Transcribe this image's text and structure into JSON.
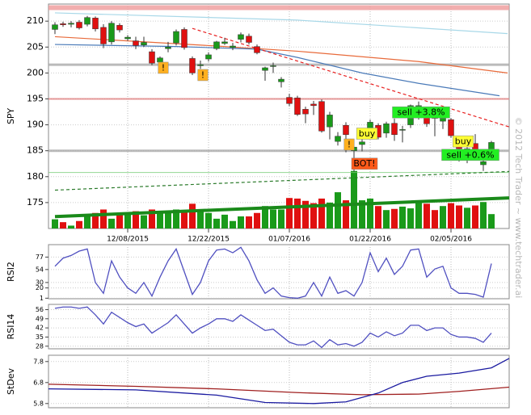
{
  "chart_data": [
    {
      "type": "candlestick",
      "ylabel": "SPY",
      "xlim": [
        -0.8,
        56.2
      ],
      "ylim": [
        170,
        213.3
      ],
      "grid": true,
      "xticks": [
        {
          "value": 9,
          "label": "12/08/2015"
        },
        {
          "value": 19,
          "label": "12/22/2015"
        },
        {
          "value": 29,
          "label": "01/07/2016"
        },
        {
          "value": 39,
          "label": "01/22/2016"
        },
        {
          "value": 49,
          "label": "02/05/2016"
        }
      ],
      "yticks": [
        175,
        180,
        185,
        190,
        195,
        200,
        205,
        210
      ],
      "up_color": "#1a9a1a",
      "down_color": "#e01010",
      "open": [
        208.4,
        209.5,
        209.4,
        209.8,
        209.4,
        210.6,
        208.8,
        206.0,
        209.2,
        206.6,
        206.2,
        205.4,
        204.1,
        202.1,
        204.7,
        205.8,
        208.4,
        202.8,
        201.4,
        202.7,
        204.7,
        205.7,
        204.9,
        206.5,
        207.1,
        205.1,
        200.5,
        201.4,
        198.3,
        195.3,
        195.2,
        193.0,
        194.0,
        194.5,
        189.6,
        186.8,
        189.9,
        185.0,
        186.2,
        188.8,
        189.9,
        188.4,
        190.3,
        189.0,
        190.0,
        192.5,
        191.9,
        191.4,
        190.7,
        191.0,
        185.8,
        183.4,
        186.4,
        182.3,
        185.0
      ],
      "high": [
        209.8,
        209.9,
        210.0,
        210.2,
        211.0,
        210.9,
        209.4,
        210.0,
        209.6,
        207.3,
        207.0,
        207.0,
        204.6,
        203.2,
        206.0,
        208.4,
        208.8,
        203.2,
        202.4,
        204.0,
        206.2,
        206.8,
        205.8,
        207.8,
        207.6,
        205.5,
        201.2,
        202.0,
        199.2,
        196.0,
        195.6,
        193.5,
        194.6,
        194.9,
        192.5,
        188.6,
        190.5,
        187.0,
        188.6,
        191.0,
        190.3,
        190.6,
        191.2,
        189.8,
        193.9,
        194.5,
        192.3,
        192.6,
        192.6,
        191.3,
        186.6,
        186.5,
        188.2,
        184.0,
        186.9
      ],
      "low": [
        207.5,
        208.9,
        208.8,
        208.4,
        209.0,
        208.0,
        204.8,
        205.5,
        207.8,
        206.2,
        204.6,
        205.0,
        201.5,
        200.6,
        204.0,
        205.3,
        204.5,
        199.6,
        200.8,
        202.2,
        204.4,
        205.4,
        204.4,
        205.9,
        205.5,
        203.6,
        198.5,
        200.0,
        197.2,
        193.6,
        191.7,
        190.3,
        191.9,
        188.5,
        187.2,
        186.0,
        184.7,
        181.0,
        184.9,
        187.8,
        187.2,
        187.5,
        186.9,
        186.6,
        189.4,
        191.0,
        189.6,
        187.8,
        189.2,
        187.5,
        182.9,
        182.6,
        184.9,
        181.1,
        183.4
      ],
      "close": [
        209.3,
        209.3,
        209.6,
        208.7,
        210.7,
        208.5,
        205.6,
        209.6,
        208.3,
        206.9,
        205.3,
        205.9,
        201.9,
        202.9,
        205.0,
        208.0,
        204.9,
        200.0,
        201.6,
        203.5,
        206.0,
        206.0,
        205.2,
        207.4,
        205.9,
        203.9,
        201.0,
        201.4,
        198.8,
        194.1,
        192.0,
        192.1,
        193.7,
        188.8,
        191.9,
        187.8,
        188.1,
        185.7,
        186.7,
        190.5,
        187.6,
        190.2,
        188.1,
        189.1,
        193.7,
        193.7,
        190.2,
        191.3,
        191.6,
        187.9,
        185.4,
        185.4,
        185.3,
        182.9,
        186.6
      ],
      "volume_ylim": [
        0,
        390
      ],
      "volume": [
        16,
        11,
        5,
        13,
        23,
        27,
        33,
        17,
        24,
        26,
        30,
        23,
        33,
        26,
        30,
        33,
        30,
        43,
        30,
        27,
        17,
        24,
        13,
        21,
        21,
        27,
        39,
        33,
        33,
        53,
        52,
        48,
        44,
        52,
        45,
        63,
        49,
        100,
        49,
        52,
        39,
        32,
        34,
        38,
        35,
        48,
        43,
        32,
        39,
        44,
        40,
        36,
        40,
        46,
        25
      ],
      "hlines": [
        {
          "value": 212.6,
          "color": "#f09a9a",
          "width": 6
        },
        {
          "value": 201.6,
          "color": "#aaaaaa",
          "width": 3
        },
        {
          "value": 195.0,
          "color": "#e08080",
          "width": 2
        },
        {
          "value": 185.0,
          "color": "#aaaaaa",
          "width": 3
        },
        {
          "value": 180.8,
          "color": "#77cc77",
          "width": 1
        }
      ],
      "overlays": [
        {
          "color": "#a8d8e8",
          "dash": false,
          "x": [
            0,
            30,
            56
          ],
          "values": [
            211.6,
            210.2,
            207.6
          ]
        },
        {
          "color": "#e86a3a",
          "dash": false,
          "x": [
            0,
            20,
            30,
            45,
            56
          ],
          "values": [
            207.0,
            205.2,
            204.2,
            202.2,
            200.0
          ]
        },
        {
          "color": "#4a7ab8",
          "dash": false,
          "x": [
            0,
            15,
            25,
            30,
            38,
            45,
            55
          ],
          "values": [
            205.5,
            205.1,
            204.6,
            203.0,
            200.0,
            198.0,
            195.6
          ]
        },
        {
          "color": "#e82020",
          "dash": true,
          "x": [
            17,
            56.2
          ],
          "values": [
            208.6,
            189.6
          ]
        },
        {
          "color": "#2a7a2a",
          "dash": true,
          "x": [
            0,
            56.2
          ],
          "values": [
            177.4,
            181.0
          ]
        },
        {
          "color": "#1a8a1a",
          "dash": false,
          "width": 4,
          "x": [
            0,
            56.2
          ],
          "values": [
            172.3,
            175.9
          ]
        }
      ],
      "annotations": [
        {
          "text": "!",
          "x": 13.4,
          "y": 201.0,
          "color": "#ffb020"
        },
        {
          "text": "!",
          "x": 18.3,
          "y": 199.6,
          "color": "#ffb020"
        },
        {
          "text": "!",
          "x": 36.4,
          "y": 186.2,
          "color": "#ffb020"
        },
        {
          "text": "buy",
          "x": 38.6,
          "y": 188.3,
          "color": "#ffff33"
        },
        {
          "text": "BOT!",
          "x": 38.3,
          "y": 182.5,
          "color": "#ff5a1a"
        },
        {
          "text": "sell +3.8%",
          "x": 45.3,
          "y": 192.4,
          "color": "#22ee22"
        },
        {
          "text": "buy",
          "x": 50.5,
          "y": 186.8,
          "color": "#ffff33"
        },
        {
          "text": "sell +0.6%",
          "x": 51.4,
          "y": 184.2,
          "color": "#22ee22"
        }
      ]
    },
    {
      "type": "line",
      "ylabel": "RSI2",
      "xlim": [
        -0.8,
        56.2
      ],
      "ylim": [
        0,
        100
      ],
      "yticks": [
        1,
        20,
        30,
        54,
        77
      ],
      "series": [
        {
          "color": "#5050c0",
          "values": [
            60,
            75,
            80,
            88,
            92,
            30,
            10,
            70,
            40,
            20,
            10,
            30,
            5,
            40,
            70,
            92,
            50,
            8,
            30,
            70,
            90,
            92,
            85,
            95,
            70,
            35,
            10,
            20,
            5,
            2,
            1,
            5,
            30,
            5,
            40,
            10,
            15,
            5,
            30,
            85,
            50,
            75,
            45,
            60,
            90,
            92,
            40,
            55,
            60,
            20,
            10,
            10,
            8,
            3,
            65
          ]
        }
      ]
    },
    {
      "type": "line",
      "ylabel": "RSI14",
      "xlim": [
        -0.8,
        56.2
      ],
      "ylim": [
        26,
        60
      ],
      "yticks": [
        28,
        35,
        42,
        49,
        56
      ],
      "series": [
        {
          "color": "#5050c0",
          "values": [
            57,
            58,
            58,
            57,
            58,
            52,
            45,
            54,
            50,
            46,
            43,
            45,
            38,
            42,
            46,
            52,
            45,
            38,
            42,
            45,
            49,
            49,
            47,
            52,
            48,
            44,
            40,
            41,
            36,
            31,
            29,
            29,
            32,
            27,
            33,
            29,
            30,
            28,
            31,
            38,
            35,
            39,
            36,
            38,
            44,
            44,
            40,
            42,
            42,
            37,
            35,
            35,
            34,
            31,
            38
          ]
        }
      ]
    },
    {
      "type": "line",
      "ylabel": "StDev",
      "xlim": [
        -0.8,
        56.2
      ],
      "ylim": [
        5.6,
        8.1
      ],
      "yticks": [
        5.8,
        6.8,
        7.8
      ],
      "series": [
        {
          "color": "#a02020",
          "x": [
            -0.8,
            10,
            20,
            30,
            38,
            45,
            50,
            56.2
          ],
          "values": [
            6.72,
            6.62,
            6.5,
            6.32,
            6.22,
            6.25,
            6.38,
            6.58
          ]
        },
        {
          "color": "#1a1aa0",
          "x": [
            -0.8,
            10,
            20,
            26,
            32,
            36,
            40,
            43,
            46,
            50,
            54,
            56.2
          ],
          "values": [
            6.5,
            6.45,
            6.2,
            5.85,
            5.8,
            5.88,
            6.3,
            6.8,
            7.1,
            7.25,
            7.5,
            7.95
          ]
        }
      ]
    }
  ],
  "watermark": "© 2012 Tech Trader ~ www.techtrader.ai"
}
